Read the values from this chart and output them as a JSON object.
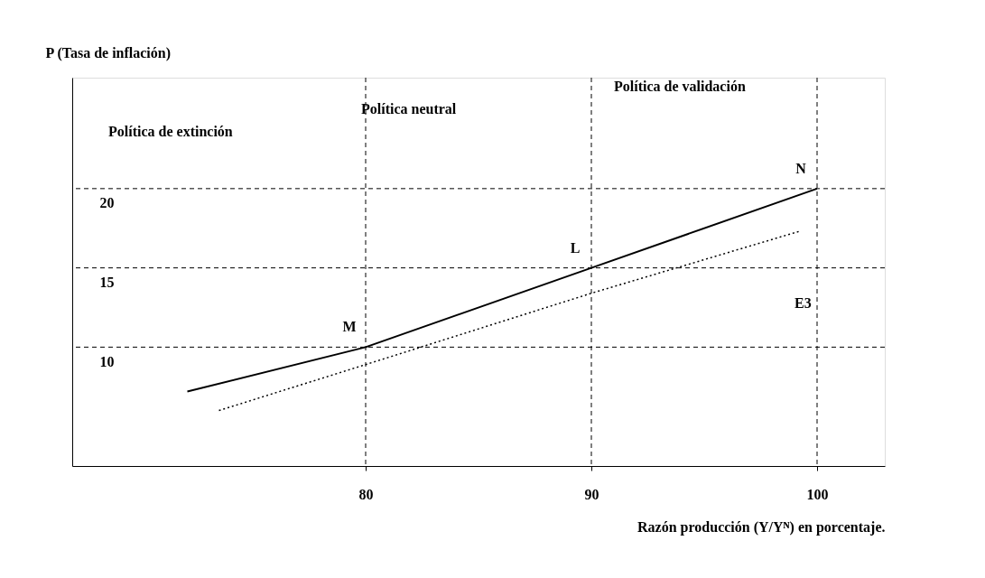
{
  "chart_data": {
    "type": "line",
    "xlabel": "Razón producción (Y/Yᴺ) en porcentaje.",
    "ylabel": "P (Tasa de inflación)",
    "xlim": [
      67,
      103
    ],
    "ylim": [
      2.5,
      27
    ],
    "xticks": [
      80,
      90,
      100
    ],
    "yticks": [
      10,
      15,
      20
    ],
    "grid": false,
    "marker": "none",
    "series": [
      {
        "color": "#000000",
        "line_style": "solid",
        "x": [
          72.1,
          80,
          90,
          100
        ],
        "values": [
          7.2,
          10,
          15,
          20
        ]
      },
      {
        "color": "#000000",
        "line_style": "dotted",
        "x": [
          73.5,
          80,
          90,
          99.2
        ],
        "values": [
          6.0,
          8.9,
          13.4,
          17.3
        ]
      }
    ],
    "ref_lines": [
      {
        "axis": "y",
        "value": 10,
        "line_style": "dashed"
      },
      {
        "axis": "y",
        "value": 15,
        "line_style": "dashed"
      },
      {
        "axis": "y",
        "value": 20,
        "line_style": "dashed"
      },
      {
        "axis": "x",
        "value": 80,
        "line_style": "dashed"
      },
      {
        "axis": "x",
        "value": 90,
        "line_style": "dashed"
      },
      {
        "axis": "x",
        "value": 100,
        "line_style": "dashed"
      }
    ],
    "annotations": [
      {
        "text": "M",
        "x": 80,
        "y": 10
      },
      {
        "text": "L",
        "x": 90,
        "y": 15
      },
      {
        "text": "N",
        "x": 100,
        "y": 20
      },
      "E3",
      "Política de extinción",
      "Política neutral",
      "Política de validación"
    ]
  }
}
